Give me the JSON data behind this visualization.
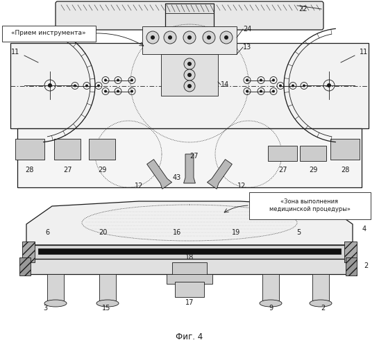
{
  "title": "Фиг. 4",
  "bg_color": "#ffffff",
  "label_top_left": "«Прием инструмента»",
  "label_bottom_right": "«Зона выполнения\nмедицинской процедуры»",
  "dark": "#1a1a1a",
  "gray_light": "#e8e8e8",
  "gray_med": "#cccccc",
  "gray_dark": "#999999",
  "lw_thin": 0.6,
  "lw_med": 0.9,
  "lw_thick": 1.4
}
